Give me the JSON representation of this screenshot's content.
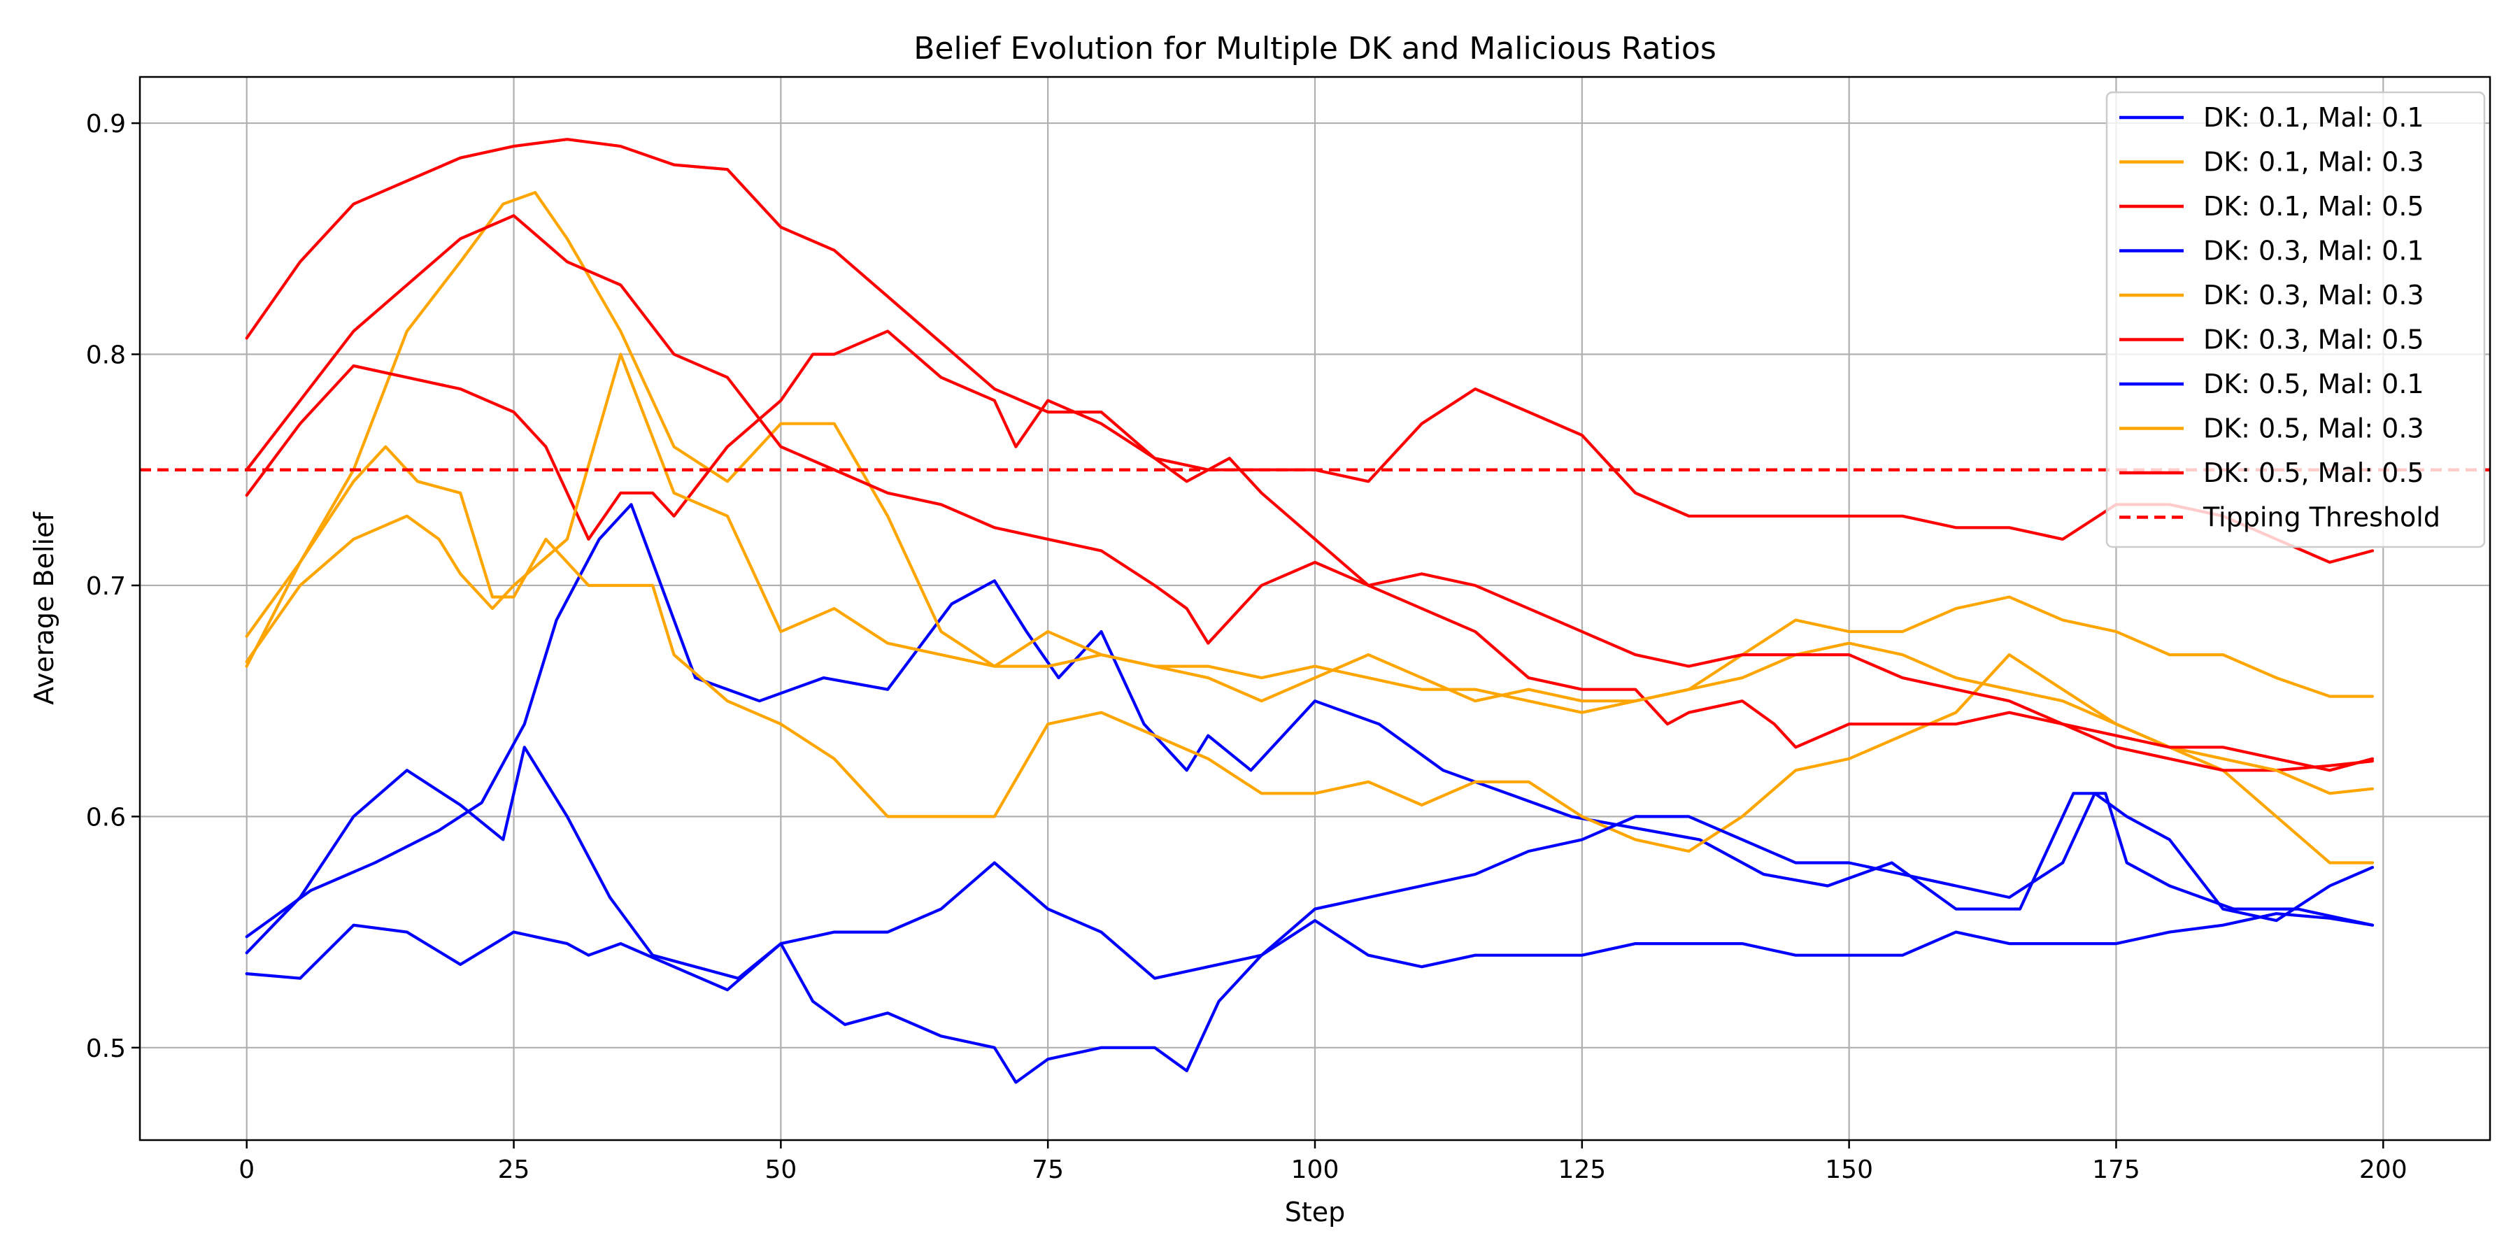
{
  "chart_data": {
    "type": "line",
    "title": "Belief Evolution for Multiple DK and Malicious Ratios",
    "xlabel": "Step",
    "ylabel": "Average Belief",
    "xlim": [
      -10,
      210
    ],
    "ylim": [
      0.46,
      0.92
    ],
    "xticks": [
      0,
      25,
      50,
      75,
      100,
      125,
      150,
      175,
      200
    ],
    "yticks": [
      0.5,
      0.6,
      0.7,
      0.8,
      0.9
    ],
    "xtick_labels": [
      "0",
      "25",
      "50",
      "75",
      "100",
      "125",
      "150",
      "175",
      "200"
    ],
    "ytick_labels": [
      "0.5",
      "0.6",
      "0.7",
      "0.8",
      "0.9"
    ],
    "grid": true,
    "legend_position": "top-right",
    "tipping_threshold": 0.75,
    "series": [
      {
        "name": "DK: 0.1, Mal: 0.1",
        "color": "#0000ff",
        "x": [
          0,
          6,
          12,
          18,
          22,
          26,
          29,
          33,
          36,
          42,
          48,
          54,
          60,
          66,
          70,
          73,
          76,
          80,
          84,
          88,
          90,
          94,
          100,
          106,
          112,
          118,
          124,
          130,
          136,
          142,
          148,
          154,
          160,
          166,
          171,
          174,
          176,
          180,
          186,
          192,
          199
        ],
        "y": [
          0.548,
          0.568,
          0.58,
          0.594,
          0.606,
          0.64,
          0.685,
          0.72,
          0.735,
          0.66,
          0.65,
          0.66,
          0.655,
          0.692,
          0.702,
          0.68,
          0.66,
          0.68,
          0.64,
          0.62,
          0.635,
          0.62,
          0.65,
          0.64,
          0.62,
          0.61,
          0.6,
          0.595,
          0.59,
          0.575,
          0.57,
          0.58,
          0.56,
          0.56,
          0.61,
          0.61,
          0.58,
          0.57,
          0.56,
          0.56,
          0.553
        ]
      },
      {
        "name": "DK: 0.1, Mal: 0.3",
        "color": "#ffa500",
        "x": [
          0,
          5,
          10,
          15,
          20,
          24,
          27,
          30,
          35,
          40,
          45,
          50,
          55,
          60,
          65,
          70,
          75,
          80,
          85,
          90,
          95,
          100,
          105,
          110,
          115,
          120,
          125,
          130,
          135,
          140,
          145,
          150,
          155,
          160,
          165,
          170,
          175,
          180,
          185,
          190,
          195,
          199
        ],
        "y": [
          0.665,
          0.71,
          0.75,
          0.81,
          0.84,
          0.865,
          0.87,
          0.85,
          0.81,
          0.76,
          0.745,
          0.77,
          0.77,
          0.73,
          0.68,
          0.665,
          0.68,
          0.67,
          0.665,
          0.66,
          0.65,
          0.66,
          0.67,
          0.66,
          0.65,
          0.655,
          0.65,
          0.65,
          0.655,
          0.67,
          0.685,
          0.68,
          0.68,
          0.69,
          0.695,
          0.685,
          0.68,
          0.67,
          0.67,
          0.66,
          0.652,
          0.652
        ]
      },
      {
        "name": "DK: 0.1, Mal: 0.5",
        "color": "#ff0000",
        "x": [
          0,
          5,
          10,
          15,
          20,
          25,
          30,
          35,
          40,
          45,
          50,
          55,
          60,
          65,
          70,
          75,
          80,
          85,
          90,
          95,
          100,
          105,
          110,
          115,
          120,
          125,
          130,
          135,
          140,
          145,
          150,
          155,
          160,
          165,
          170,
          175,
          180,
          185,
          190,
          195,
          199
        ],
        "y": [
          0.807,
          0.84,
          0.865,
          0.875,
          0.885,
          0.89,
          0.893,
          0.89,
          0.882,
          0.88,
          0.855,
          0.845,
          0.825,
          0.805,
          0.785,
          0.775,
          0.775,
          0.755,
          0.75,
          0.75,
          0.75,
          0.745,
          0.77,
          0.785,
          0.775,
          0.765,
          0.74,
          0.73,
          0.73,
          0.73,
          0.73,
          0.73,
          0.725,
          0.725,
          0.72,
          0.735,
          0.735,
          0.73,
          0.72,
          0.71,
          0.715
        ]
      },
      {
        "name": "DK: 0.3, Mal: 0.1",
        "color": "#0000ff",
        "x": [
          0,
          5,
          10,
          15,
          20,
          25,
          30,
          32,
          35,
          40,
          45,
          50,
          53,
          56,
          60,
          65,
          70,
          72,
          75,
          80,
          85,
          88,
          91,
          95,
          100,
          105,
          110,
          115,
          120,
          125,
          130,
          135,
          140,
          145,
          150,
          155,
          160,
          165,
          170,
          175,
          180,
          185,
          190,
          195,
          199
        ],
        "y": [
          0.532,
          0.53,
          0.553,
          0.55,
          0.536,
          0.55,
          0.545,
          0.54,
          0.545,
          0.535,
          0.525,
          0.545,
          0.52,
          0.51,
          0.515,
          0.505,
          0.5,
          0.485,
          0.495,
          0.5,
          0.5,
          0.49,
          0.52,
          0.54,
          0.555,
          0.54,
          0.535,
          0.54,
          0.54,
          0.54,
          0.545,
          0.545,
          0.545,
          0.54,
          0.54,
          0.54,
          0.55,
          0.545,
          0.545,
          0.545,
          0.55,
          0.553,
          0.558,
          0.556,
          0.553
        ]
      },
      {
        "name": "DK: 0.3, Mal: 0.3",
        "color": "#ffa500",
        "x": [
          0,
          5,
          10,
          13,
          16,
          20,
          23,
          25,
          28,
          32,
          35,
          38,
          40,
          45,
          50,
          55,
          60,
          65,
          70,
          75,
          80,
          85,
          90,
          95,
          100,
          105,
          110,
          115,
          120,
          125,
          130,
          135,
          140,
          145,
          150,
          155,
          160,
          165,
          170,
          175,
          180,
          185,
          190,
          195,
          199
        ],
        "y": [
          0.678,
          0.71,
          0.745,
          0.76,
          0.745,
          0.74,
          0.695,
          0.695,
          0.72,
          0.7,
          0.7,
          0.7,
          0.67,
          0.65,
          0.64,
          0.625,
          0.6,
          0.6,
          0.6,
          0.64,
          0.645,
          0.635,
          0.625,
          0.61,
          0.61,
          0.615,
          0.605,
          0.615,
          0.615,
          0.6,
          0.59,
          0.585,
          0.6,
          0.62,
          0.625,
          0.635,
          0.645,
          0.67,
          0.655,
          0.64,
          0.63,
          0.62,
          0.6,
          0.58,
          0.58
        ]
      },
      {
        "name": "DK: 0.3, Mal: 0.5",
        "color": "#ff0000",
        "x": [
          0,
          5,
          10,
          15,
          20,
          25,
          28,
          30,
          32,
          35,
          38,
          40,
          45,
          50,
          53,
          55,
          60,
          65,
          70,
          72,
          75,
          80,
          85,
          88,
          92,
          95,
          100,
          105,
          110,
          115,
          120,
          125,
          130,
          133,
          135,
          140,
          143,
          145,
          150,
          155,
          160,
          165,
          170,
          175,
          180,
          185,
          190,
          195,
          199
        ],
        "y": [
          0.739,
          0.77,
          0.795,
          0.79,
          0.785,
          0.775,
          0.76,
          0.74,
          0.72,
          0.74,
          0.74,
          0.73,
          0.76,
          0.78,
          0.8,
          0.8,
          0.81,
          0.79,
          0.78,
          0.76,
          0.78,
          0.77,
          0.755,
          0.745,
          0.755,
          0.74,
          0.72,
          0.7,
          0.69,
          0.68,
          0.66,
          0.655,
          0.655,
          0.64,
          0.645,
          0.65,
          0.64,
          0.63,
          0.64,
          0.64,
          0.64,
          0.645,
          0.64,
          0.63,
          0.625,
          0.62,
          0.62,
          0.622,
          0.624
        ]
      },
      {
        "name": "DK: 0.5, Mal: 0.1",
        "color": "#0000ff",
        "x": [
          0,
          5,
          10,
          15,
          20,
          24,
          26,
          30,
          34,
          38,
          42,
          46,
          50,
          55,
          60,
          65,
          70,
          75,
          80,
          85,
          90,
          95,
          100,
          105,
          110,
          115,
          120,
          125,
          130,
          135,
          140,
          145,
          150,
          155,
          160,
          165,
          170,
          173,
          176,
          180,
          185,
          190,
          195,
          199
        ],
        "y": [
          0.541,
          0.565,
          0.6,
          0.62,
          0.605,
          0.59,
          0.63,
          0.6,
          0.565,
          0.54,
          0.535,
          0.53,
          0.545,
          0.55,
          0.55,
          0.56,
          0.58,
          0.56,
          0.55,
          0.53,
          0.535,
          0.54,
          0.56,
          0.565,
          0.57,
          0.575,
          0.585,
          0.59,
          0.6,
          0.6,
          0.59,
          0.58,
          0.58,
          0.575,
          0.57,
          0.565,
          0.58,
          0.61,
          0.6,
          0.59,
          0.56,
          0.555,
          0.57,
          0.578
        ]
      },
      {
        "name": "DK: 0.5, Mal: 0.3",
        "color": "#ffa500",
        "x": [
          0,
          5,
          10,
          15,
          18,
          20,
          23,
          25,
          30,
          35,
          40,
          45,
          50,
          55,
          60,
          65,
          70,
          75,
          80,
          85,
          90,
          95,
          100,
          105,
          110,
          115,
          120,
          125,
          130,
          135,
          140,
          145,
          150,
          155,
          160,
          165,
          170,
          175,
          180,
          185,
          190,
          195,
          199
        ],
        "y": [
          0.667,
          0.7,
          0.72,
          0.73,
          0.72,
          0.705,
          0.69,
          0.7,
          0.72,
          0.8,
          0.74,
          0.73,
          0.68,
          0.69,
          0.675,
          0.67,
          0.665,
          0.665,
          0.67,
          0.665,
          0.665,
          0.66,
          0.665,
          0.66,
          0.655,
          0.655,
          0.65,
          0.645,
          0.65,
          0.655,
          0.66,
          0.67,
          0.675,
          0.67,
          0.66,
          0.655,
          0.65,
          0.64,
          0.63,
          0.625,
          0.62,
          0.61,
          0.612
        ]
      },
      {
        "name": "DK: 0.5, Mal: 0.5",
        "color": "#ff0000",
        "x": [
          0,
          5,
          10,
          15,
          20,
          25,
          30,
          35,
          40,
          45,
          50,
          55,
          60,
          65,
          70,
          75,
          80,
          85,
          88,
          90,
          95,
          100,
          105,
          110,
          115,
          120,
          125,
          130,
          135,
          140,
          145,
          150,
          155,
          160,
          165,
          170,
          175,
          180,
          185,
          190,
          195,
          199
        ],
        "y": [
          0.75,
          0.78,
          0.81,
          0.83,
          0.85,
          0.86,
          0.84,
          0.83,
          0.8,
          0.79,
          0.76,
          0.75,
          0.74,
          0.735,
          0.725,
          0.72,
          0.715,
          0.7,
          0.69,
          0.675,
          0.7,
          0.71,
          0.7,
          0.705,
          0.7,
          0.69,
          0.68,
          0.67,
          0.665,
          0.67,
          0.67,
          0.67,
          0.66,
          0.655,
          0.65,
          0.64,
          0.635,
          0.63,
          0.63,
          0.625,
          0.62,
          0.625
        ]
      }
    ],
    "reference_lines": [
      {
        "name": "Tipping Threshold",
        "y": 0.75,
        "color": "#ff0000",
        "style": "dashed"
      }
    ]
  }
}
